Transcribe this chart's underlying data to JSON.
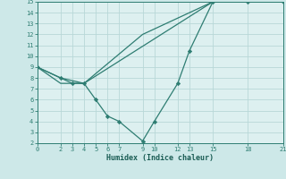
{
  "title": "",
  "xlabel": "Humidex (Indice chaleur)",
  "ylabel": "",
  "bg_color": "#cde8e8",
  "plot_bg_color": "#ddf0f0",
  "grid_color": "#b8d8d8",
  "line_color": "#2e7d72",
  "spine_color": "#2e7d72",
  "tick_color": "#2e7d72",
  "label_color": "#1a5c54",
  "xlim": [
    0,
    21
  ],
  "ylim": [
    2,
    15
  ],
  "xticks": [
    0,
    2,
    3,
    4,
    5,
    6,
    7,
    9,
    10,
    12,
    13,
    15,
    18,
    21
  ],
  "yticks": [
    2,
    3,
    4,
    5,
    6,
    7,
    8,
    9,
    10,
    11,
    12,
    13,
    14,
    15
  ],
  "series": [
    {
      "x": [
        0,
        2,
        4,
        15,
        18,
        21
      ],
      "y": [
        9,
        8.0,
        7.5,
        15,
        15,
        15
      ],
      "has_markers": false
    },
    {
      "x": [
        0,
        2,
        4,
        9,
        15,
        18,
        21
      ],
      "y": [
        9,
        7.5,
        7.5,
        12,
        15,
        15,
        15
      ],
      "has_markers": false
    },
    {
      "x": [
        0,
        2,
        3,
        4,
        5,
        6,
        7,
        9,
        10,
        12,
        13,
        15,
        18,
        21
      ],
      "y": [
        9,
        8.0,
        7.5,
        7.5,
        6,
        4.5,
        4,
        2.2,
        4,
        7.5,
        10.5,
        15,
        15,
        15
      ],
      "has_markers": true
    }
  ]
}
